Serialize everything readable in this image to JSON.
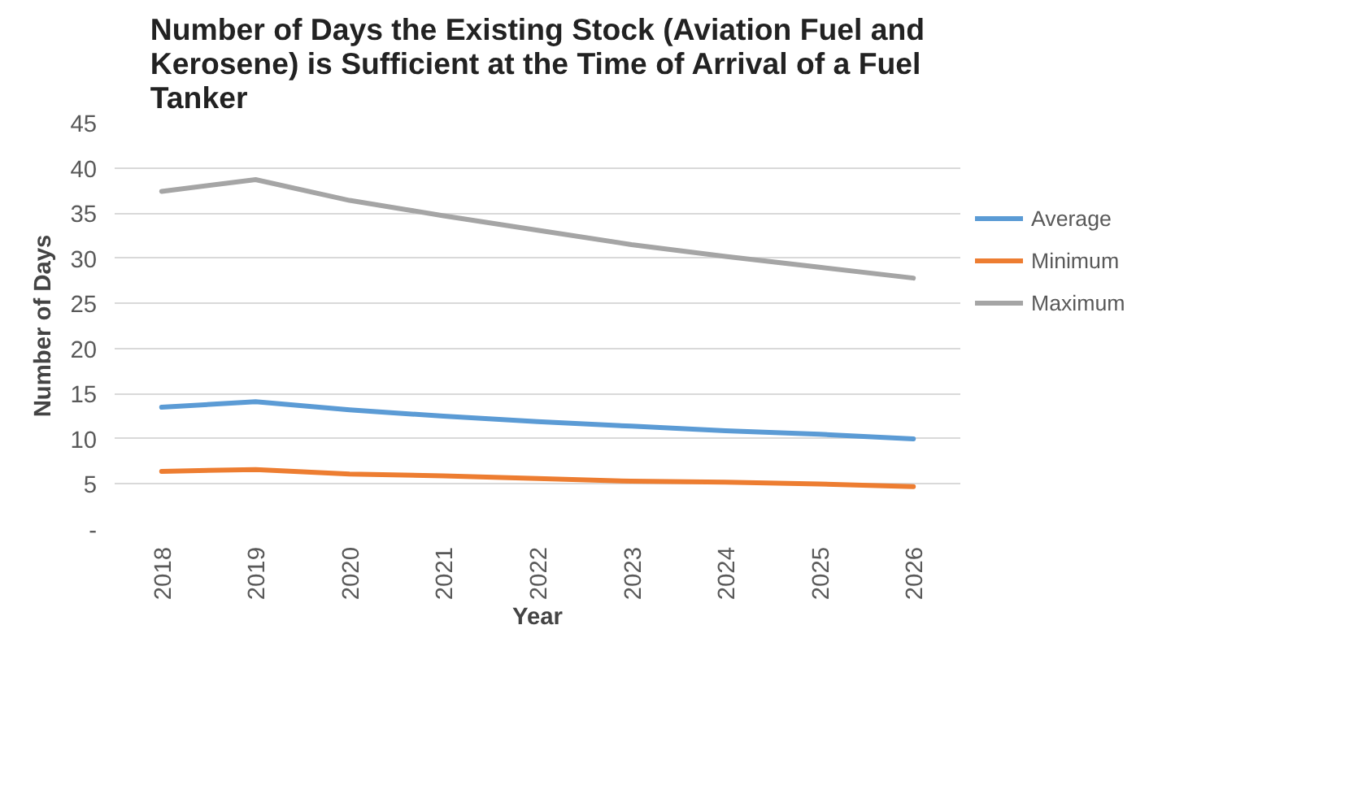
{
  "chart_data": {
    "type": "line",
    "title": "Number of Days the Existing Stock (Aviation Fuel and Kerosene) is Sufficient at the Time of Arrival of a Fuel Tanker",
    "xlabel": "Year",
    "ylabel": "Number of Days",
    "categories": [
      "2018",
      "2019",
      "2020",
      "2021",
      "2022",
      "2023",
      "2024",
      "2025",
      "2026"
    ],
    "series": [
      {
        "name": "Average",
        "color": "#5b9bd5",
        "values": [
          13.5,
          14.1,
          13.2,
          12.5,
          11.9,
          11.4,
          10.9,
          10.5,
          10.0
        ]
      },
      {
        "name": "Minimum",
        "color": "#ed7d31",
        "values": [
          6.4,
          6.6,
          6.1,
          5.9,
          5.6,
          5.3,
          5.2,
          5.0,
          4.7
        ]
      },
      {
        "name": "Maximum",
        "color": "#a5a5a5",
        "values": [
          37.4,
          38.7,
          36.4,
          34.7,
          33.1,
          31.5,
          30.2,
          29.0,
          27.8
        ]
      }
    ],
    "ylim": [
      0,
      45
    ],
    "yticks": [
      {
        "value": 0,
        "label": "-"
      },
      5,
      10,
      15,
      20,
      25,
      30,
      35,
      40,
      45
    ],
    "grid": "y",
    "legend": "right",
    "line_style": "solid"
  }
}
